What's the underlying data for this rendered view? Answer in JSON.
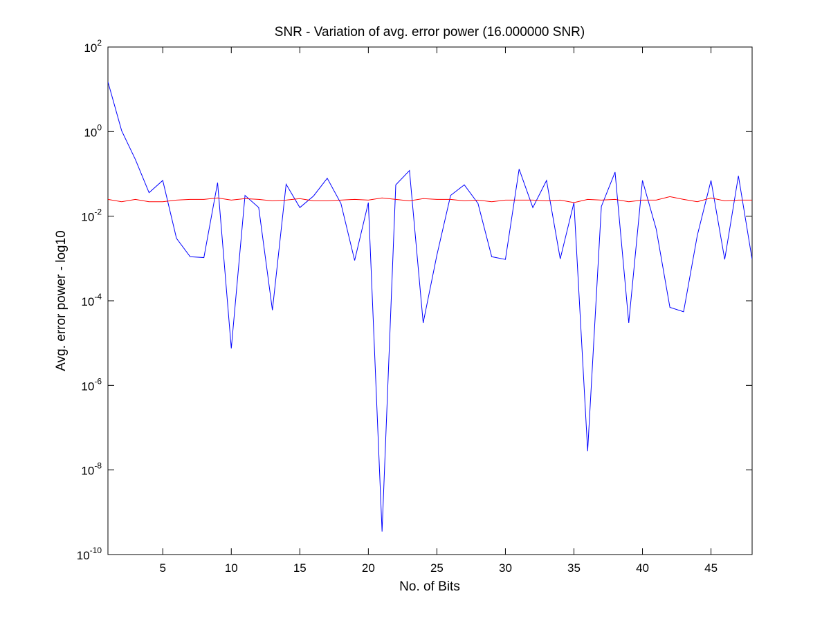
{
  "chart_data": {
    "type": "line",
    "title": "SNR - Variation of avg. error power (16.000000 SNR)",
    "xlabel": "No. of Bits",
    "ylabel": "Avg. error power - log10",
    "xlim": [
      1,
      48
    ],
    "ylim": [
      1e-10,
      100
    ],
    "yscale": "log",
    "grid": false,
    "x_ticks": [
      5,
      10,
      15,
      20,
      25,
      30,
      35,
      40,
      45
    ],
    "x_tick_labels": [
      "5",
      "10",
      "15",
      "20",
      "25",
      "30",
      "35",
      "40",
      "45"
    ],
    "y_ticks": [
      1e-10,
      1e-08,
      1e-06,
      0.0001,
      0.01,
      1,
      100
    ],
    "y_tick_labels": [
      {
        "base": "10",
        "exp": "-10"
      },
      {
        "base": "10",
        "exp": "-8"
      },
      {
        "base": "10",
        "exp": "-6"
      },
      {
        "base": "10",
        "exp": "-4"
      },
      {
        "base": "10",
        "exp": "-2"
      },
      {
        "base": "10",
        "exp": "0"
      },
      {
        "base": "10",
        "exp": "2"
      }
    ],
    "x": [
      1,
      2,
      3,
      4,
      5,
      6,
      7,
      8,
      9,
      10,
      11,
      12,
      13,
      14,
      15,
      16,
      17,
      18,
      19,
      20,
      21,
      22,
      23,
      24,
      25,
      26,
      27,
      28,
      29,
      30,
      31,
      32,
      33,
      34,
      35,
      36,
      37,
      38,
      39,
      40,
      41,
      42,
      43,
      44,
      45,
      46,
      47,
      48
    ],
    "series": [
      {
        "color": "#0000ff",
        "values": [
          15,
          1.05,
          0.22,
          0.036,
          0.07,
          0.003,
          0.0011,
          0.00105,
          0.062,
          7.5e-06,
          0.031,
          0.016,
          6e-05,
          0.057,
          0.016,
          0.03,
          0.079,
          0.02,
          0.0009,
          0.021,
          3.5e-10,
          0.055,
          0.12,
          3e-05,
          0.0012,
          0.031,
          0.055,
          0.02,
          0.0011,
          0.00095,
          0.13,
          0.016,
          0.07,
          0.00098,
          0.021,
          2.8e-08,
          0.017,
          0.11,
          3e-05,
          0.07,
          0.005,
          7e-05,
          5.5e-05,
          0.0035,
          0.07,
          0.00095,
          0.09,
          0.00095
        ]
      },
      {
        "color": "#ff0000",
        "values": [
          0.025,
          0.022,
          0.025,
          0.022,
          0.022,
          0.024,
          0.025,
          0.025,
          0.027,
          0.024,
          0.026,
          0.025,
          0.023,
          0.024,
          0.026,
          0.023,
          0.023,
          0.024,
          0.025,
          0.024,
          0.027,
          0.025,
          0.023,
          0.026,
          0.025,
          0.025,
          0.023,
          0.024,
          0.022,
          0.024,
          0.024,
          0.024,
          0.023,
          0.024,
          0.021,
          0.025,
          0.024,
          0.025,
          0.022,
          0.024,
          0.024,
          0.029,
          0.025,
          0.022,
          0.027,
          0.023,
          0.024,
          0.024
        ]
      }
    ]
  }
}
